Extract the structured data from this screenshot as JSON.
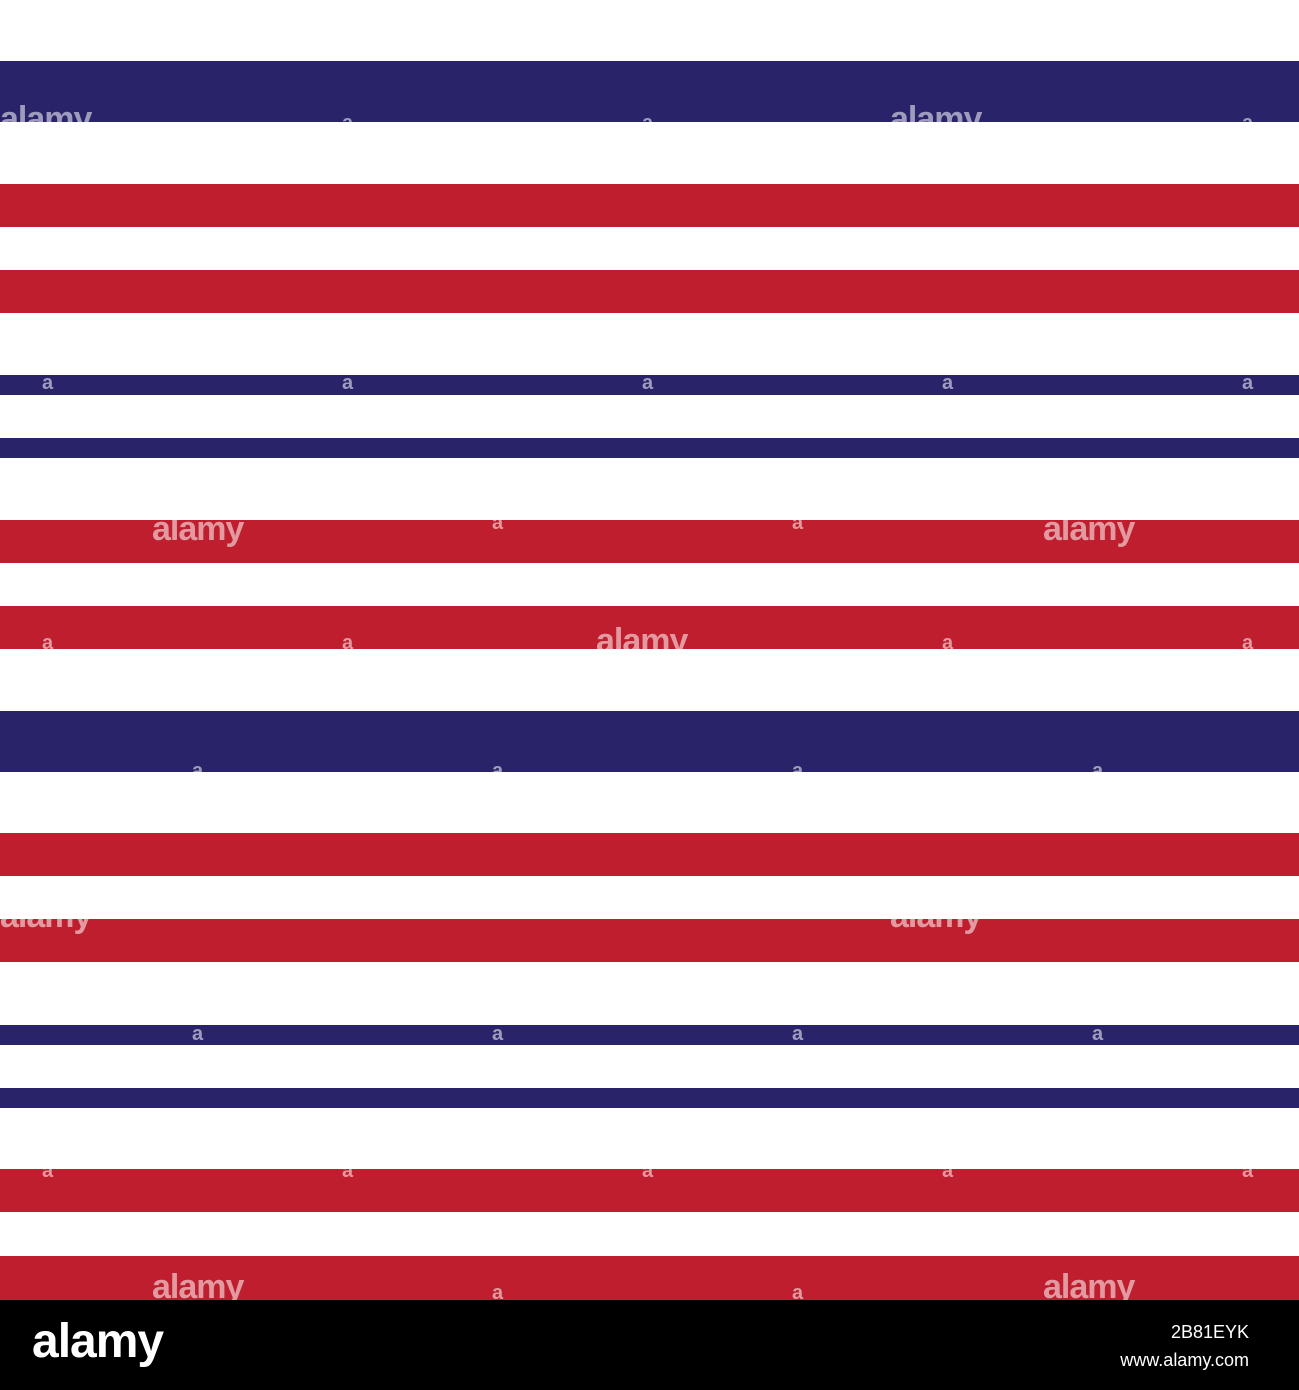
{
  "colors": {
    "navy": "#29236a",
    "red": "#be1e2d",
    "white": "#ffffff",
    "footer_bg": "#000000"
  },
  "stripes": [
    {
      "color": "navy"
    },
    {
      "color": "red"
    },
    {
      "color": "red"
    },
    {
      "color": "navy"
    },
    {
      "color": "navy"
    },
    {
      "color": "red"
    },
    {
      "color": "red"
    },
    {
      "color": "navy"
    },
    {
      "color": "red"
    },
    {
      "color": "red"
    },
    {
      "color": "navy"
    },
    {
      "color": "navy"
    },
    {
      "color": "red"
    },
    {
      "color": "red"
    }
  ],
  "watermark": {
    "text": "alamy",
    "mark": "a"
  },
  "footer": {
    "logo": "alamy",
    "image_id": "2B81EYK",
    "site": "www.alamy.com"
  }
}
